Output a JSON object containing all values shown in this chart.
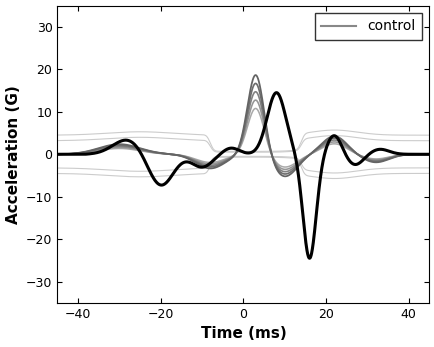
{
  "xlabel": "Time (ms)",
  "ylabel": "Acceleration (G)",
  "xlim": [
    -45,
    45
  ],
  "ylim": [
    -35,
    35
  ],
  "xticks": [
    -40,
    -20,
    0,
    20,
    40
  ],
  "yticks": [
    -30,
    -20,
    -10,
    0,
    10,
    20,
    30
  ],
  "legend_label": "control",
  "background_color": "#ffffff",
  "black_color": "#000000",
  "gray_scales": [
    0.55,
    0.65,
    0.75,
    0.85,
    0.95
  ],
  "flat_offsets": [
    4.5,
    3.2,
    -3.2,
    -4.5
  ],
  "flat_color": "#cccccc",
  "xlabel_fontsize": 11,
  "ylabel_fontsize": 11,
  "tick_labelsize": 9
}
